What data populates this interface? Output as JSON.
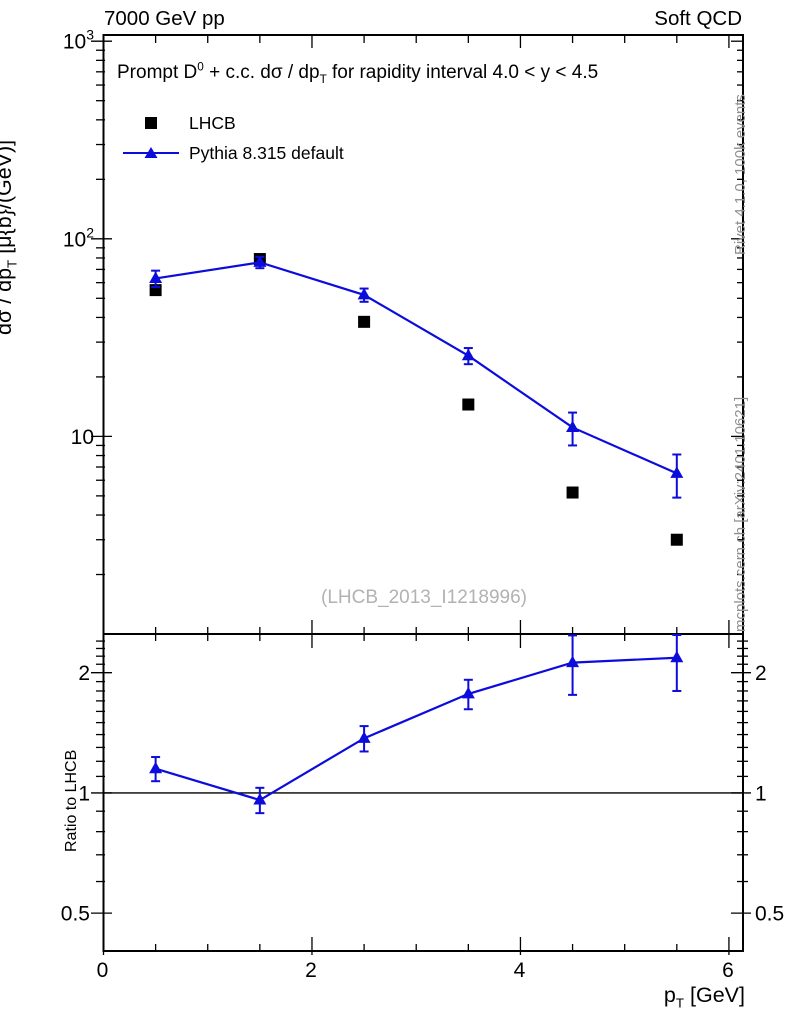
{
  "header": {
    "left": "7000 GeV pp",
    "right": "Soft QCD"
  },
  "plot": {
    "title": "Prompt D^{0} + c.c.  dσ / dp_{T} for rapidity interval 4.0 < y < 4.5",
    "watermark": "(LHCB_2013_I1218996)",
    "ylabel": "dσ / dp_{T} [μ{b}/(GeV)]",
    "xlabel": "p_{T} [GeV]",
    "ratio_ylabel": "Ratio to LHCB"
  },
  "legend": [
    {
      "label": "LHCB",
      "marker": "square",
      "color": "#000000"
    },
    {
      "label": "Pythia 8.315 default",
      "marker": "triangle-line",
      "color": "#0c0cdc"
    }
  ],
  "sidebar": {
    "top": "Rivet 4.1.0,  100k events",
    "bottom": "mcplots.cern.ch [arXiv:2401.10621]"
  },
  "colors": {
    "pythia_blue": "#0c0cdc",
    "data_black": "#000000",
    "gray_text": "#8f8f8f",
    "watermark_gray": "#b2b2b2"
  },
  "chart_data": [
    {
      "type": "line",
      "title": "Prompt D0 + c.c. dσ/dpT for rapidity interval 4.0 < y < 4.5",
      "xlabel": "pT [GeV]",
      "ylabel": "dσ / dpT [μ{b}/(GeV)]",
      "xlim": [
        0,
        6.135
      ],
      "ylim": [
        1.0,
        1075
      ],
      "yscale": "log",
      "x": [
        0.5,
        1.5,
        2.5,
        3.5,
        4.5,
        5.5
      ],
      "series": [
        {
          "name": "LHCB",
          "marker": "square",
          "color": "#000000",
          "values": [
            55,
            79,
            38,
            14.5,
            5.2,
            3.0
          ]
        },
        {
          "name": "Pythia 8.315 default",
          "marker": "triangle",
          "color": "#0c0cdc",
          "values": [
            63,
            76,
            52,
            25.6,
            11.1,
            6.5
          ],
          "errors": [
            6,
            5,
            4,
            2.4,
            2.1,
            1.6
          ]
        }
      ],
      "xticks": [
        {
          "v": 0,
          "label": "0"
        },
        {
          "v": 2,
          "label": "2"
        },
        {
          "v": 4,
          "label": "4"
        },
        {
          "v": 6,
          "label": "6"
        }
      ],
      "yticks": [
        {
          "v": 10,
          "label": "10",
          "exp": ""
        },
        {
          "v": 100,
          "label": "10",
          "exp": "2"
        },
        {
          "v": 1000,
          "label": "10",
          "exp": "3"
        }
      ]
    },
    {
      "type": "ratio",
      "ylabel": "Ratio to LHCB",
      "ylim": [
        0.402,
        2.5
      ],
      "yscale": "log",
      "reference": 1.0,
      "x": [
        0.5,
        1.5,
        2.5,
        3.5,
        4.5,
        5.5
      ],
      "values": [
        1.15,
        0.96,
        1.37,
        1.77,
        2.12,
        2.18
      ],
      "errors": [
        0.08,
        0.07,
        0.1,
        0.15,
        0.36,
        0.38
      ],
      "yticks": [
        {
          "v": 0.5,
          "label": "0.5"
        },
        {
          "v": 1,
          "label": "1"
        },
        {
          "v": 2,
          "label": "2"
        }
      ]
    }
  ]
}
